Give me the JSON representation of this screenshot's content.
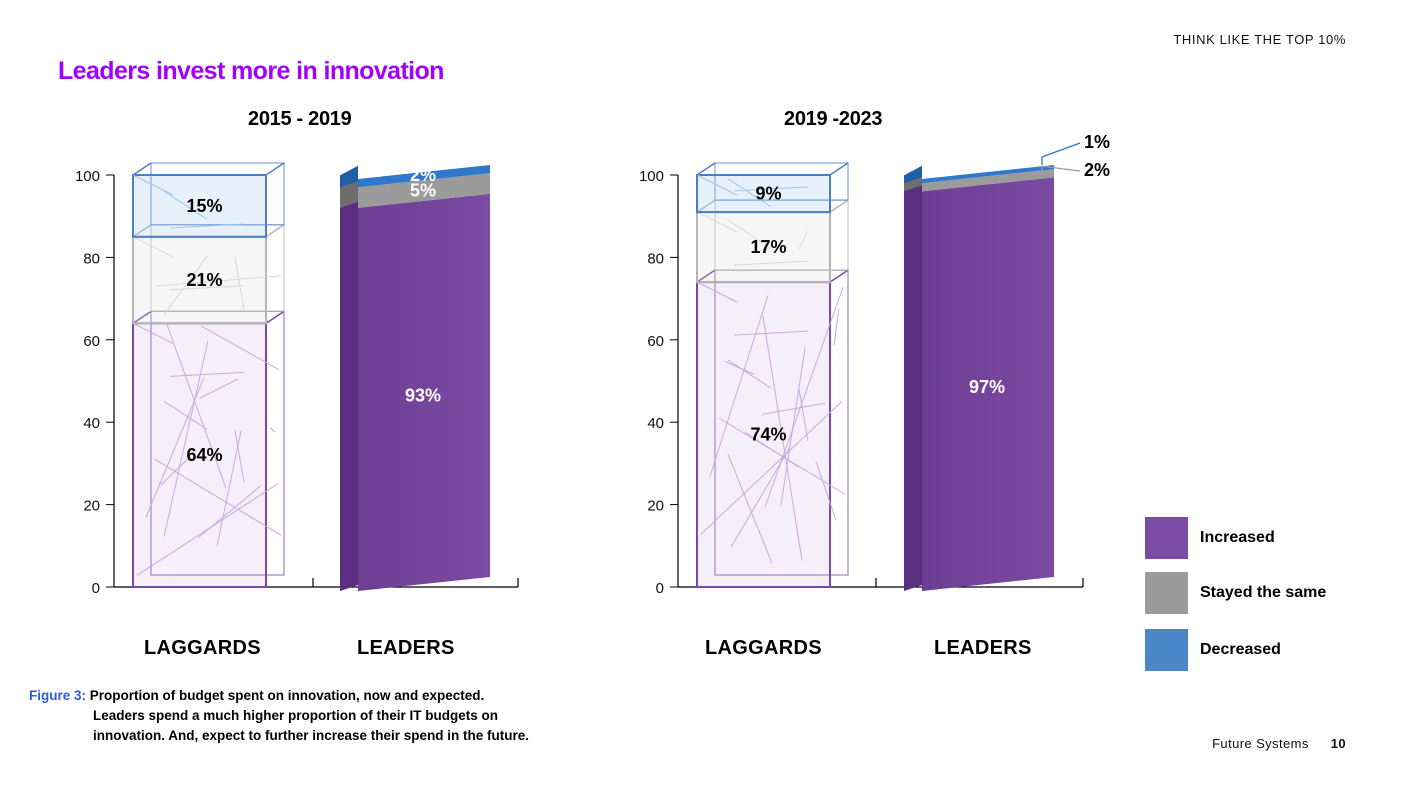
{
  "header": {
    "tag": "THINK LIKE THE TOP 10%"
  },
  "title": "Leaders invest more in innovation",
  "legend": [
    {
      "label": "Increased",
      "color": "#7c4ba3"
    },
    {
      "label": "Stayed the same",
      "color": "#9b9b9b"
    },
    {
      "label": "Decreased",
      "color": "#4a86c8"
    }
  ],
  "caption": {
    "figure_label": "Figure 3:",
    "line1": "Proportion of budget spent on innovation, now and expected.",
    "line2": "Leaders spend a much higher proportion of their IT budgets on",
    "line3": "innovation. And, expect to further increase their spend in the future."
  },
  "footer": {
    "section": "Future Systems",
    "page": "10"
  },
  "chart_data": [
    {
      "type": "bar",
      "stacked": true,
      "title": "2015 - 2019",
      "categories": [
        "LAGGARDS",
        "LEADERS"
      ],
      "ylim": [
        0,
        100
      ],
      "yticks": [
        0,
        20,
        40,
        60,
        80,
        100
      ],
      "series": [
        {
          "name": "Increased",
          "values": [
            64,
            93
          ],
          "labels": [
            "64%",
            "93%"
          ]
        },
        {
          "name": "Stayed the same",
          "values": [
            21,
            5
          ],
          "labels": [
            "21%",
            "5%"
          ]
        },
        {
          "name": "Decreased",
          "values": [
            15,
            2
          ],
          "labels": [
            "15%",
            "2%"
          ]
        }
      ]
    },
    {
      "type": "bar",
      "stacked": true,
      "title": "2019 -2023",
      "categories": [
        "LAGGARDS",
        "LEADERS"
      ],
      "ylim": [
        0,
        100
      ],
      "yticks": [
        0,
        20,
        40,
        60,
        80,
        100
      ],
      "series": [
        {
          "name": "Increased",
          "values": [
            74,
            97
          ],
          "labels": [
            "74%",
            "97%"
          ]
        },
        {
          "name": "Stayed the same",
          "values": [
            17,
            2
          ],
          "labels": [
            "17%",
            "2%"
          ]
        },
        {
          "name": "Decreased",
          "values": [
            9,
            1
          ],
          "labels": [
            "9%",
            "1%"
          ]
        }
      ]
    }
  ]
}
